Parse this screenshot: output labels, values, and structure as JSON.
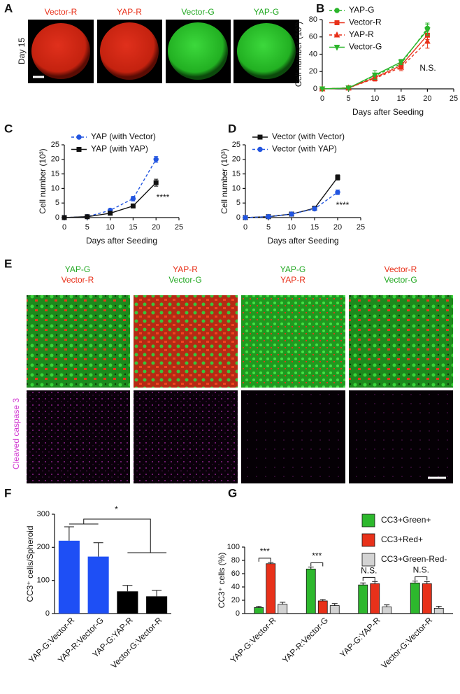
{
  "panel_a": {
    "label": "A",
    "row_label": "Day 15",
    "columns": [
      "Vector-R",
      "YAP-R",
      "Vector-G",
      "YAP-G"
    ]
  },
  "panel_e": {
    "label": "E",
    "columns": [
      [
        "YAP-G",
        "Vector-R"
      ],
      [
        "YAP-R",
        "Vector-G"
      ],
      [
        "YAP-G",
        "YAP-R"
      ],
      [
        "Vector-R",
        "Vector-G"
      ]
    ],
    "row_label": "Cleaved caspase 3"
  },
  "chart_data": [
    {
      "type": "line",
      "panel_label": "B",
      "x": [
        0,
        5,
        10,
        15,
        20
      ],
      "xlim": [
        0,
        25
      ],
      "xticks": [
        0,
        5,
        10,
        15,
        20,
        25
      ],
      "ylim": [
        0,
        80
      ],
      "yticks": [
        0,
        20,
        40,
        60,
        80
      ],
      "xlabel": "Days after Seeding",
      "ylabel": "Cell number (10³)",
      "annotation": "N.S.",
      "legend": "upper left",
      "series": [
        {
          "name": "YAP-G",
          "color": "#2bb52b",
          "linestyle": "dashed",
          "marker": "circle",
          "values": [
            0,
            1,
            15,
            29,
            70
          ],
          "errors": [
            0,
            0.5,
            3,
            4,
            6
          ]
        },
        {
          "name": "Vector-R",
          "color": "#e8311a",
          "linestyle": "solid",
          "marker": "square",
          "values": [
            0,
            1,
            13,
            27,
            62
          ],
          "errors": [
            0,
            0.5,
            3,
            4,
            5
          ]
        },
        {
          "name": "YAP-R",
          "color": "#e8311a",
          "linestyle": "dashed",
          "marker": "triangle",
          "values": [
            0,
            1,
            12,
            25,
            55
          ],
          "errors": [
            0,
            0.5,
            3,
            4,
            8
          ]
        },
        {
          "name": "Vector-G",
          "color": "#2bb52b",
          "linestyle": "solid",
          "marker": "triangle-down",
          "values": [
            0,
            1,
            16,
            31,
            68
          ],
          "errors": [
            0,
            0.5,
            5,
            3,
            6
          ]
        }
      ]
    },
    {
      "type": "line",
      "panel_label": "C",
      "x": [
        0,
        5,
        10,
        15,
        20
      ],
      "xlim": [
        0,
        25
      ],
      "xticks": [
        0,
        5,
        10,
        15,
        20,
        25
      ],
      "ylim": [
        0,
        25
      ],
      "yticks": [
        0,
        5,
        10,
        15,
        20,
        25
      ],
      "xlabel": "Days after Seeding",
      "ylabel": "Cell number (10³)",
      "annotation": "****",
      "legend": "upper left",
      "series": [
        {
          "name": "YAP (with Vector)",
          "color": "#2255e0",
          "linestyle": "dashed",
          "marker": "circle",
          "values": [
            0,
            0.3,
            2.5,
            6.5,
            20
          ],
          "errors": [
            0,
            0.2,
            0.5,
            0.8,
            1
          ]
        },
        {
          "name": "YAP (with YAP)",
          "color": "#111111",
          "linestyle": "solid",
          "marker": "square",
          "values": [
            0,
            0.3,
            1.5,
            4,
            12
          ],
          "errors": [
            0,
            0.2,
            0.3,
            0.7,
            1.2
          ]
        }
      ]
    },
    {
      "type": "line",
      "panel_label": "D",
      "x": [
        0,
        5,
        10,
        15,
        20
      ],
      "xlim": [
        0,
        25
      ],
      "xticks": [
        0,
        5,
        10,
        15,
        20,
        25
      ],
      "ylim": [
        0,
        25
      ],
      "yticks": [
        0,
        5,
        10,
        15,
        20,
        25
      ],
      "xlabel": "Days after Seeding",
      "ylabel": "Cell number (10³)",
      "annotation": "****",
      "legend": "upper left",
      "series": [
        {
          "name": "Vector (with Vector)",
          "color": "#111111",
          "linestyle": "solid",
          "marker": "square",
          "values": [
            0,
            0.3,
            1.2,
            3.2,
            13.8
          ],
          "errors": [
            0,
            0.2,
            0.2,
            0.4,
            0.9
          ]
        },
        {
          "name": "Vector (with YAP)",
          "color": "#2255e0",
          "linestyle": "dashed",
          "marker": "circle",
          "values": [
            0,
            0.3,
            1.2,
            3,
            8.7
          ],
          "errors": [
            0,
            0.2,
            0.2,
            0.4,
            0.8
          ]
        }
      ]
    },
    {
      "type": "bar",
      "panel_label": "F",
      "categories": [
        "YAP-G:Vector-R",
        "YAP-R:Vector-G",
        "YAP-G:YAP-R",
        "Vector-G:Vector-R"
      ],
      "values": [
        220,
        172,
        67,
        52
      ],
      "errors": [
        42,
        42,
        18,
        18
      ],
      "colors": [
        "#1e4ff5",
        "#1e4ff5",
        "#000000",
        "#000000"
      ],
      "ylim": [
        0,
        300
      ],
      "yticks": [
        0,
        100,
        200,
        300
      ],
      "ylabel": "CC3⁺ cells/Spheroid",
      "annotation": "*"
    },
    {
      "type": "grouped_bar",
      "panel_label": "G",
      "categories": [
        "YAP-G:Vector-R",
        "YAP-R:Vector-G",
        "YAP-G:YAP-R",
        "Vector-G:Vector-R"
      ],
      "series": [
        {
          "name": "CC3+Green+",
          "color": "#2db82d",
          "values": [
            9,
            67,
            43,
            46
          ],
          "errors": [
            2,
            3,
            3,
            3
          ]
        },
        {
          "name": "CC3+Red+",
          "color": "#e8311a",
          "values": [
            75,
            19,
            45,
            45
          ],
          "errors": [
            2,
            2,
            3,
            3
          ]
        },
        {
          "name": "CC3+Green-Red-",
          "color": "#d3d3d3",
          "values": [
            14,
            12,
            10,
            8
          ],
          "errors": [
            3,
            3,
            3,
            3
          ]
        }
      ],
      "ylim": [
        0,
        100
      ],
      "yticks": [
        0,
        20,
        40,
        60,
        80,
        100
      ],
      "ylabel": "CC3⁺ cells (%)",
      "annotations": [
        "***",
        "***",
        "N.S.",
        "N.S."
      ],
      "legend": "upper right"
    }
  ]
}
